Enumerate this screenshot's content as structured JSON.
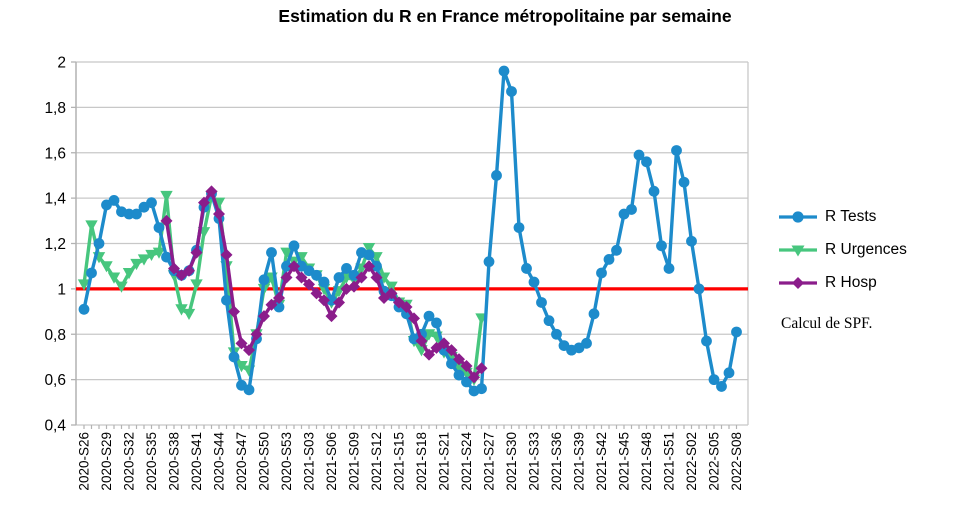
{
  "title": "Estimation du R en France métropolitaine par semaine",
  "note": "Calcul de SPF.",
  "legend": {
    "items": [
      {
        "label": "R Tests",
        "marker": "circle",
        "color": "#1d8bcb"
      },
      {
        "label": "R Urgences",
        "marker": "triangle-down",
        "color": "#47c67e"
      },
      {
        "label": "R Hosp",
        "marker": "diamond",
        "color": "#8b1d8b"
      }
    ]
  },
  "chart_data": {
    "type": "line",
    "title": "Estimation du R en France métropolitaine par semaine",
    "xlabel": "",
    "ylabel": "",
    "ylim": [
      0.4,
      2.0
    ],
    "grid": true,
    "legend_position": "right",
    "grid_color": "#c8c8c8",
    "axis_color": "#b2b2b2",
    "y_ticks": [
      {
        "value": 2.0,
        "label": "2"
      },
      {
        "value": 1.8,
        "label": "1,8"
      },
      {
        "value": 1.6,
        "label": "1,6"
      },
      {
        "value": 1.4,
        "label": "1,4"
      },
      {
        "value": 1.2,
        "label": "1,2"
      },
      {
        "value": 1.0,
        "label": "1"
      },
      {
        "value": 0.8,
        "label": "0,8"
      },
      {
        "value": 0.6,
        "label": "0,6"
      },
      {
        "value": 0.4,
        "label": "0,4"
      }
    ],
    "n_points": 88,
    "x_tick_step": 3,
    "x_tick_labels": [
      "2020-S26",
      "2020-S29",
      "2020-S32",
      "2020-S35",
      "2020-S38",
      "2020-S41",
      "2020-S44",
      "2020-S47",
      "2020-S50",
      "2020-S53",
      "2021-S03",
      "2021-S06",
      "2021-S09",
      "2021-S12",
      "2021-S15",
      "2021-S18",
      "2021-S21",
      "2021-S24",
      "2021-S27",
      "2021-S30",
      "2021-S33",
      "2021-S36",
      "2021-S39",
      "2021-S42",
      "2021-S45",
      "2021-S48",
      "2021-S51",
      "2022-S02",
      "2022-S05",
      "2022-S08"
    ],
    "reference_line": {
      "value": 1.0,
      "color": "#fe0000"
    },
    "series": [
      {
        "name": "R Tests",
        "color": "#1d8bcb",
        "marker": "circle",
        "start_index": 0,
        "values": [
          0.91,
          1.07,
          1.2,
          1.37,
          1.39,
          1.34,
          1.33,
          1.33,
          1.36,
          1.38,
          1.27,
          1.14,
          1.08,
          1.06,
          1.08,
          1.17,
          1.36,
          1.42,
          1.31,
          0.95,
          0.7,
          0.575,
          0.555,
          0.78,
          1.04,
          1.16,
          0.92,
          1.1,
          1.19,
          1.1,
          1.08,
          1.06,
          1.03,
          0.95,
          1.05,
          1.09,
          1.06,
          1.16,
          1.15,
          1.1,
          0.99,
          0.97,
          0.92,
          0.89,
          0.78,
          0.8,
          0.88,
          0.85,
          0.73,
          0.67,
          0.62,
          0.59,
          0.55,
          0.56,
          1.12,
          1.5,
          1.96,
          1.87,
          1.27,
          1.09,
          1.03,
          0.94,
          0.86,
          0.8,
          0.75,
          0.73,
          0.74,
          0.76,
          0.89,
          1.07,
          1.13,
          1.17,
          1.33,
          1.35,
          1.59,
          1.56,
          1.43,
          1.19,
          1.09,
          1.61,
          1.47,
          1.21,
          1.0,
          0.77,
          0.6,
          0.57,
          0.63,
          0.81
        ]
      },
      {
        "name": "R Urgences",
        "color": "#47c67e",
        "marker": "triangle-down",
        "start_index": 0,
        "values": [
          1.02,
          1.28,
          1.14,
          1.1,
          1.05,
          1.01,
          1.07,
          1.11,
          1.13,
          1.15,
          1.16,
          1.41,
          1.06,
          0.91,
          0.89,
          1.02,
          1.25,
          1.41,
          1.38,
          1.1,
          0.72,
          0.66,
          0.64,
          0.8,
          1.0,
          1.05,
          0.93,
          1.16,
          1.12,
          1.14,
          1.09,
          1.06,
          1.0,
          0.94,
          0.99,
          1.05,
          1.04,
          1.09,
          1.18,
          1.14,
          1.05,
          1.01,
          0.94,
          0.93,
          0.77,
          0.73,
          0.8,
          0.79,
          0.72,
          0.7,
          0.65,
          0.63,
          0.6,
          0.87
        ]
      },
      {
        "name": "R Hosp",
        "color": "#8b1d8b",
        "marker": "diamond",
        "start_index": 11,
        "values": [
          1.3,
          1.09,
          1.06,
          1.08,
          1.16,
          1.38,
          1.43,
          1.33,
          1.15,
          0.9,
          0.76,
          0.73,
          0.8,
          0.88,
          0.93,
          0.96,
          1.05,
          1.1,
          1.05,
          1.02,
          0.98,
          0.95,
          0.88,
          0.94,
          1.0,
          1.01,
          1.05,
          1.1,
          1.05,
          0.96,
          0.98,
          0.94,
          0.92,
          0.87,
          0.77,
          0.71,
          0.74,
          0.76,
          0.73,
          0.69,
          0.66,
          0.61,
          0.65
        ]
      }
    ]
  }
}
